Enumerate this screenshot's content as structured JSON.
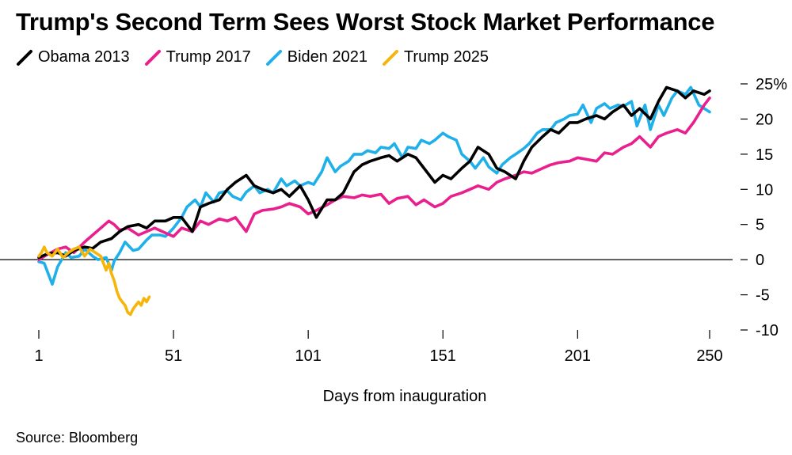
{
  "title": "Trump's Second Term Sees Worst Stock Market Performance",
  "source": "Source: Bloomberg",
  "chart_data": {
    "type": "line",
    "title": "Trump's Second Term Sees Worst Stock Market Performance",
    "xlabel": "Days from inauguration",
    "ylabel": "",
    "xlim": [
      1,
      250
    ],
    "ylim": [
      -10,
      25
    ],
    "x_ticks": [
      1,
      51,
      101,
      151,
      201,
      250
    ],
    "y_ticks": [
      -10,
      -5,
      0,
      5,
      10,
      15,
      20,
      25
    ],
    "y_tick_labels": [
      "-10",
      "-5",
      "0",
      "5",
      "10",
      "15",
      "20",
      "25%"
    ],
    "legend_position": "top-left",
    "series": [
      {
        "name": "Biden 2021",
        "color": "#1fb0ea",
        "x": [
          1,
          3,
          6,
          8,
          11,
          13,
          16,
          18,
          21,
          23,
          26,
          28,
          29,
          31,
          33,
          36,
          38,
          41,
          43,
          46,
          48,
          51,
          54,
          56,
          59,
          61,
          63,
          66,
          68,
          71,
          73,
          76,
          78,
          81,
          83,
          86,
          88,
          91,
          93,
          96,
          98,
          101,
          103,
          106,
          108,
          111,
          113,
          116,
          118,
          121,
          123,
          126,
          128,
          131,
          133,
          136,
          138,
          141,
          143,
          146,
          148,
          151,
          153,
          156,
          158,
          161,
          163,
          166,
          168,
          171,
          173,
          176,
          178,
          181,
          183,
          186,
          188,
          191,
          193,
          196,
          198,
          201,
          203,
          206,
          208,
          211,
          213,
          216,
          218,
          221,
          223,
          226,
          228,
          231,
          233,
          236,
          238,
          241,
          243,
          246,
          248,
          250
        ],
        "y": [
          -0.3,
          -0.5,
          -3.5,
          -1.0,
          1.0,
          0.3,
          0.5,
          1.5,
          0.5,
          0.0,
          0.3,
          -1.5,
          -0.2,
          1.0,
          2.5,
          1.3,
          1.5,
          2.8,
          3.5,
          3.5,
          3.3,
          4.5,
          6.0,
          7.5,
          8.5,
          7.5,
          9.5,
          8.2,
          9.5,
          9.8,
          9.0,
          8.5,
          9.6,
          10.5,
          9.5,
          10.0,
          9.5,
          11.5,
          10.5,
          11.2,
          10.5,
          11.0,
          10.7,
          12.5,
          14.5,
          12.5,
          13.3,
          14.0,
          15.0,
          15.0,
          15.5,
          15.2,
          16.0,
          15.8,
          16.5,
          14.5,
          16.0,
          15.8,
          17.0,
          16.5,
          17.0,
          18.0,
          17.5,
          17.0,
          15.0,
          14.0,
          13.0,
          14.5,
          13.2,
          12.3,
          13.5,
          14.5,
          15.0,
          15.8,
          16.5,
          18.0,
          18.5,
          18.5,
          19.5,
          20.0,
          20.5,
          20.7,
          22.0,
          19.5,
          21.5,
          22.2,
          21.5,
          22.0,
          21.8,
          22.5,
          19.0,
          22.0,
          18.5,
          22.0,
          20.5,
          23.0,
          24.0,
          23.5,
          24.5,
          22.0,
          21.5,
          21.0
        ]
      },
      {
        "name": "Trump 2017",
        "color": "#ea1f8e",
        "x": [
          1,
          4,
          8,
          11,
          14,
          18,
          21,
          24,
          27,
          29,
          31,
          34,
          38,
          41,
          44,
          48,
          51,
          54,
          58,
          61,
          64,
          68,
          71,
          74,
          78,
          81,
          84,
          88,
          91,
          94,
          98,
          101,
          104,
          108,
          111,
          114,
          118,
          121,
          124,
          128,
          131,
          134,
          138,
          141,
          144,
          148,
          151,
          154,
          158,
          161,
          164,
          168,
          171,
          174,
          178,
          181,
          184,
          188,
          191,
          194,
          198,
          201,
          204,
          208,
          211,
          214,
          218,
          221,
          224,
          228,
          231,
          234,
          238,
          241,
          244,
          248,
          250
        ],
        "y": [
          0.0,
          0.7,
          1.5,
          1.8,
          1.0,
          2.5,
          3.5,
          4.5,
          5.5,
          5.0,
          4.2,
          4.5,
          3.5,
          4.0,
          4.5,
          3.8,
          3.3,
          4.5,
          4.0,
          5.5,
          5.0,
          5.8,
          5.5,
          6.0,
          4.0,
          6.5,
          7.0,
          7.2,
          7.5,
          8.0,
          7.5,
          6.5,
          7.0,
          7.8,
          8.5,
          9.0,
          8.8,
          9.2,
          9.0,
          9.3,
          8.0,
          8.7,
          9.0,
          7.8,
          8.5,
          7.5,
          8.0,
          9.0,
          9.5,
          10.0,
          10.5,
          10.0,
          11.0,
          11.5,
          12.0,
          12.5,
          12.3,
          13.0,
          13.5,
          13.8,
          14.0,
          14.5,
          14.3,
          14.0,
          15.2,
          15.0,
          16.0,
          16.5,
          17.5,
          16.0,
          17.5,
          18.0,
          18.5,
          18.0,
          19.5,
          22.0,
          23.0
        ]
      },
      {
        "name": "Obama 2013",
        "color": "#000000",
        "x": [
          1,
          4,
          8,
          11,
          14,
          18,
          21,
          24,
          28,
          31,
          34,
          38,
          41,
          44,
          48,
          51,
          54,
          58,
          61,
          64,
          68,
          71,
          74,
          78,
          81,
          84,
          88,
          91,
          94,
          98,
          101,
          104,
          108,
          111,
          114,
          118,
          121,
          124,
          128,
          131,
          134,
          138,
          141,
          144,
          148,
          151,
          154,
          158,
          161,
          164,
          168,
          171,
          174,
          178,
          181,
          184,
          188,
          191,
          194,
          198,
          201,
          204,
          208,
          211,
          214,
          218,
          221,
          224,
          228,
          231,
          234,
          238,
          241,
          244,
          248,
          250
        ],
        "y": [
          0.3,
          0.8,
          1.0,
          0.5,
          1.3,
          1.8,
          1.6,
          2.5,
          3.0,
          4.0,
          4.7,
          5.0,
          4.5,
          5.5,
          5.5,
          6.0,
          6.0,
          4.0,
          7.5,
          8.0,
          8.5,
          10.0,
          11.0,
          12.0,
          10.5,
          10.0,
          9.5,
          10.0,
          9.0,
          10.5,
          8.5,
          6.0,
          8.5,
          8.5,
          9.5,
          12.5,
          13.5,
          14.0,
          14.5,
          14.8,
          14.0,
          15.0,
          14.5,
          13.0,
          11.0,
          12.0,
          11.5,
          13.0,
          14.0,
          16.0,
          15.0,
          13.0,
          12.5,
          11.5,
          14.0,
          16.0,
          17.5,
          18.5,
          18.0,
          19.5,
          19.5,
          20.0,
          20.5,
          20.0,
          21.0,
          22.0,
          20.5,
          21.5,
          20.0,
          22.5,
          24.5,
          24.0,
          23.0,
          24.0,
          23.5,
          24.0
        ]
      },
      {
        "name": "Trump 2025",
        "color": "#f5b50a",
        "x": [
          1,
          2,
          3,
          4,
          6,
          8,
          10,
          12,
          14,
          16,
          18,
          20,
          22,
          24,
          26,
          27,
          28,
          29,
          30,
          31,
          32,
          33,
          34,
          35,
          36,
          37,
          38,
          39,
          40,
          41,
          42
        ],
        "y": [
          0.5,
          1.0,
          1.8,
          1.0,
          0.5,
          1.5,
          0.3,
          1.0,
          1.5,
          1.8,
          0.5,
          1.5,
          1.0,
          0.5,
          -1.5,
          -0.5,
          -2.0,
          -3.0,
          -4.5,
          -5.5,
          -6.0,
          -6.5,
          -7.5,
          -7.8,
          -7.0,
          -6.5,
          -6.0,
          -6.5,
          -5.5,
          -6.0,
          -5.3
        ]
      }
    ]
  }
}
